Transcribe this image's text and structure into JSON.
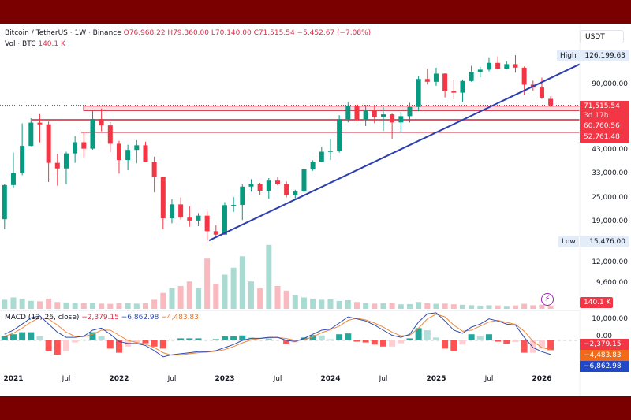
{
  "header": {
    "symbol": "Bitcoin / TetherUS · 1W · Binance",
    "open": "O76,968.22",
    "high": "H79,360.00",
    "low": "L70,140.00",
    "close": "C71,515.54",
    "change": "−5,452.67 (−7.08%)",
    "vol_label": "Vol · BTC",
    "vol_value": "140.1 K"
  },
  "currency_button": "USDT",
  "macd_legend": {
    "label": "MACD (12, 26, close)",
    "histogram": "−2,379.15",
    "macd": "−6,862.98",
    "signal": "−4,483.83"
  },
  "price_axis": {
    "ticks": [
      "90,000.00",
      "43,000.00",
      "33,000.00",
      "25,000.00",
      "19,000.00",
      "12,000.00",
      "9,600.00"
    ],
    "high_label": "High",
    "high_value": "126,199.63",
    "low_label": "Low",
    "low_value": "15,476.00",
    "last_price": "71,515.54",
    "countdown": "3d 17h",
    "level1": "60,760.56",
    "level2": "52,761.48",
    "volume_tag": "140.1 K"
  },
  "macd_axis": {
    "tick": "10,000.00",
    "zero": "0.00",
    "histogram_tag": "−2,379.15",
    "signal_tag": "−4,483.83",
    "macd_tag": "−6,862.98"
  },
  "time_axis": [
    {
      "label": "2021",
      "year": true
    },
    {
      "label": "Jul",
      "year": false
    },
    {
      "label": "2022",
      "year": true
    },
    {
      "label": "Jul",
      "year": false
    },
    {
      "label": "2023",
      "year": true
    },
    {
      "label": "Jul",
      "year": false
    },
    {
      "label": "2024",
      "year": true
    },
    {
      "label": "Jul",
      "year": false
    },
    {
      "label": "2025",
      "year": true
    },
    {
      "label": "Jul",
      "year": false
    },
    {
      "label": "2026",
      "year": true
    }
  ],
  "colors": {
    "up": "#089981",
    "down": "#f23645",
    "trendline": "#2c3fb0",
    "level": "#d0243a",
    "zone_fill": "#fcdde2",
    "macd": "#2e4cb0",
    "signal": "#f0883a",
    "frame": "#7a0000"
  },
  "chart_data": {
    "type": "candlestick",
    "scale": "log",
    "interval": "1W (approximated monthly)",
    "start_month": "2020-12",
    "ylim": [
      9600,
      130000
    ],
    "ohlc": [
      [
        19700,
        29300,
        17600,
        29000
      ],
      [
        29000,
        41900,
        28100,
        33100
      ],
      [
        33100,
        58300,
        32400,
        45200
      ],
      [
        45200,
        61800,
        45000,
        58800
      ],
      [
        58800,
        64800,
        47000,
        57700
      ],
      [
        57700,
        59500,
        30000,
        37300
      ],
      [
        37300,
        41300,
        28800,
        35000
      ],
      [
        35000,
        42300,
        29300,
        41500
      ],
      [
        41500,
        50500,
        37300,
        47100
      ],
      [
        47100,
        52900,
        39600,
        43800
      ],
      [
        43800,
        67000,
        43300,
        61300
      ],
      [
        61300,
        69000,
        53300,
        57000
      ],
      [
        57000,
        59100,
        42000,
        46300
      ],
      [
        46300,
        47900,
        33000,
        38500
      ],
      [
        38500,
        45800,
        34300,
        43200
      ],
      [
        43200,
        48200,
        37100,
        45500
      ],
      [
        45500,
        47400,
        37600,
        37700
      ],
      [
        37700,
        40000,
        26700,
        31800
      ],
      [
        31800,
        31900,
        17600,
        19900
      ],
      [
        19900,
        24700,
        18800,
        23300
      ],
      [
        23300,
        25200,
        19600,
        20050
      ],
      [
        20050,
        22800,
        18100,
        19400
      ],
      [
        19400,
        21100,
        18200,
        20500
      ],
      [
        20500,
        21500,
        15476,
        17200
      ],
      [
        17200,
        18400,
        16300,
        16550
      ],
      [
        16550,
        23900,
        16500,
        23100
      ],
      [
        23100,
        25300,
        21400,
        23150
      ],
      [
        23150,
        29200,
        19500,
        28500
      ],
      [
        28500,
        31000,
        26900,
        29250
      ],
      [
        29250,
        29800,
        25800,
        27200
      ],
      [
        27200,
        31400,
        24800,
        30500
      ],
      [
        30500,
        31800,
        28900,
        29250
      ],
      [
        29250,
        30200,
        25200,
        25950
      ],
      [
        25950,
        27500,
        24900,
        26950
      ],
      [
        26950,
        35200,
        26600,
        34650
      ],
      [
        34650,
        38400,
        34100,
        37700
      ],
      [
        37700,
        44700,
        37600,
        42300
      ],
      [
        42300,
        48900,
        38500,
        42600
      ],
      [
        42600,
        64000,
        41900,
        61200
      ],
      [
        61200,
        73800,
        59000,
        71300
      ],
      [
        71300,
        72800,
        59600,
        60650
      ],
      [
        60650,
        71900,
        56600,
        67500
      ],
      [
        67500,
        71900,
        58400,
        62700
      ],
      [
        62700,
        70000,
        53500,
        64600
      ],
      [
        64600,
        65100,
        49000,
        58950
      ],
      [
        58950,
        66500,
        52500,
        63300
      ],
      [
        63300,
        73600,
        58900,
        70200
      ],
      [
        70200,
        99600,
        66800,
        96400
      ],
      [
        96400,
        108300,
        90500,
        93400
      ],
      [
        93400,
        109600,
        89200,
        102400
      ],
      [
        102400,
        102800,
        78200,
        84350
      ],
      [
        84350,
        95000,
        76600,
        82550
      ],
      [
        82550,
        95800,
        74400,
        94200
      ],
      [
        94200,
        111900,
        93400,
        104600
      ],
      [
        104600,
        110600,
        98200,
        107150
      ],
      [
        107150,
        123200,
        105100,
        115750
      ],
      [
        115750,
        124500,
        107300,
        108250
      ],
      [
        108250,
        117900,
        107300,
        114050
      ],
      [
        114050,
        126199.63,
        103500,
        109600
      ],
      [
        109600,
        111000,
        80600,
        90400
      ],
      [
        90400,
        94600,
        84400,
        87500
      ],
      [
        87500,
        97900,
        76900,
        78000
      ],
      [
        76968.22,
        79360,
        70140,
        71515.54
      ]
    ],
    "volume_k": [
      400,
      500,
      450,
      350,
      330,
      450,
      300,
      280,
      260,
      250,
      260,
      230,
      220,
      240,
      250,
      230,
      240,
      400,
      700,
      900,
      1000,
      1200,
      900,
      2200,
      1100,
      1500,
      1800,
      2300,
      1200,
      900,
      2800,
      1000,
      800,
      600,
      500,
      450,
      400,
      420,
      350,
      380,
      300,
      250,
      230,
      240,
      260,
      200,
      210,
      300,
      250,
      220,
      230,
      200,
      180,
      160,
      140,
      160,
      150,
      130,
      150,
      220,
      160,
      180,
      140.1
    ],
    "macd": [
      3000,
      5000,
      8000,
      11000,
      12000,
      8000,
      4000,
      1500,
      1500,
      2000,
      5000,
      6000,
      3000,
      -500,
      -1500,
      -1500,
      -2500,
      -5000,
      -8000,
      -7000,
      -6500,
      -6000,
      -5500,
      -5500,
      -5000,
      -3500,
      -2000,
      0,
      1000,
      1000,
      1500,
      1500,
      0,
      -500,
      1000,
      3000,
      5000,
      5500,
      8500,
      11500,
      10500,
      9500,
      7500,
      5000,
      2500,
      1500,
      3000,
      9000,
      13000,
      13500,
      9500,
      5000,
      3500,
      6500,
      8000,
      10500,
      9500,
      8000,
      7500,
      1500,
      -3500,
      -5500,
      -6862.98
    ],
    "signal": [
      2000,
      3500,
      6000,
      9000,
      11000,
      10500,
      7500,
      4000,
      2000,
      1800,
      3000,
      5000,
      5000,
      2500,
      0,
      -1000,
      -1800,
      -3500,
      -6000,
      -7200,
      -7000,
      -6500,
      -6000,
      -5700,
      -5300,
      -4500,
      -3000,
      -1200,
      300,
      900,
      1200,
      1400,
      900,
      0,
      300,
      1700,
      3800,
      5200,
      7000,
      9800,
      10800,
      10000,
      8500,
      6500,
      4000,
      2200,
      2500,
      6000,
      10500,
      12800,
      11500,
      7500,
      4500,
      5000,
      7000,
      9000,
      9800,
      8800,
      7900,
      4500,
      -500,
      -3500,
      -4483.83
    ],
    "levels": [
      71515.54,
      68000,
      60760.56,
      52761.48
    ],
    "trendline": [
      {
        "month": "2022-11",
        "price": 15476
      },
      {
        "month": "2026-02",
        "price": 112000
      }
    ],
    "high": 126199.63,
    "low": 15476
  }
}
